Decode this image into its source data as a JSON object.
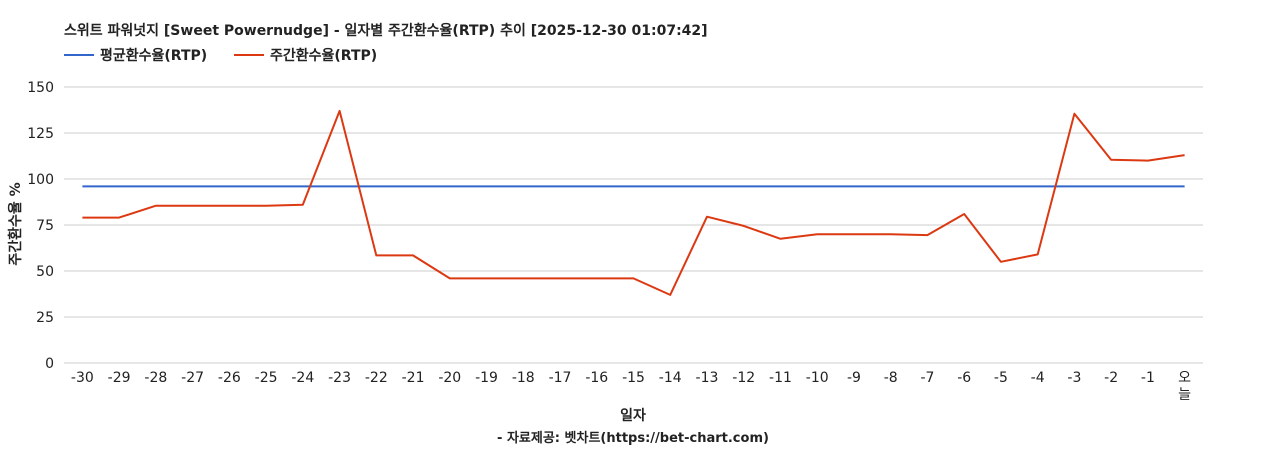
{
  "chart_data": {
    "type": "line",
    "title": "스위트 파워넛지 [Sweet Powernudge] - 일자별 주간환수율(RTP) 추이 [2025-12-30 01:07:42]",
    "xlabel": "일자",
    "ylabel": "주간환수율 %",
    "footer": "- 자료제공: 벳차트(https://bet-chart.com)",
    "categories": [
      "-30",
      "-29",
      "-28",
      "-27",
      "-26",
      "-25",
      "-24",
      "-23",
      "-22",
      "-21",
      "-20",
      "-19",
      "-18",
      "-17",
      "-16",
      "-15",
      "-14",
      "-13",
      "-12",
      "-11",
      "-10",
      "-9",
      "-8",
      "-7",
      "-6",
      "-5",
      "-4",
      "-3",
      "-2",
      "-1",
      "오늘"
    ],
    "ylim": [
      0,
      150
    ],
    "yticks": [
      "0",
      "25",
      "50",
      "75",
      "100",
      "125",
      "150"
    ],
    "grid": true,
    "legend_position": "top-left",
    "series": [
      {
        "name": "평균환수율(RTP)",
        "color": "#3366cc",
        "values": [
          96,
          96,
          96,
          96,
          96,
          96,
          96,
          96,
          96,
          96,
          96,
          96,
          96,
          96,
          96,
          96,
          96,
          96,
          96,
          96,
          96,
          96,
          96,
          96,
          96,
          96,
          96,
          96,
          96,
          96,
          96
        ]
      },
      {
        "name": "주간환수율(RTP)",
        "color": "#dc3912",
        "values": [
          79,
          79,
          85.5,
          85.5,
          85.5,
          85.5,
          86,
          137,
          58.5,
          58.5,
          46,
          46,
          46,
          46,
          46,
          46,
          37,
          79.5,
          74.5,
          67.5,
          70,
          70,
          70,
          69.5,
          81,
          55,
          59,
          135.5,
          110.5,
          110,
          113
        ]
      }
    ]
  }
}
